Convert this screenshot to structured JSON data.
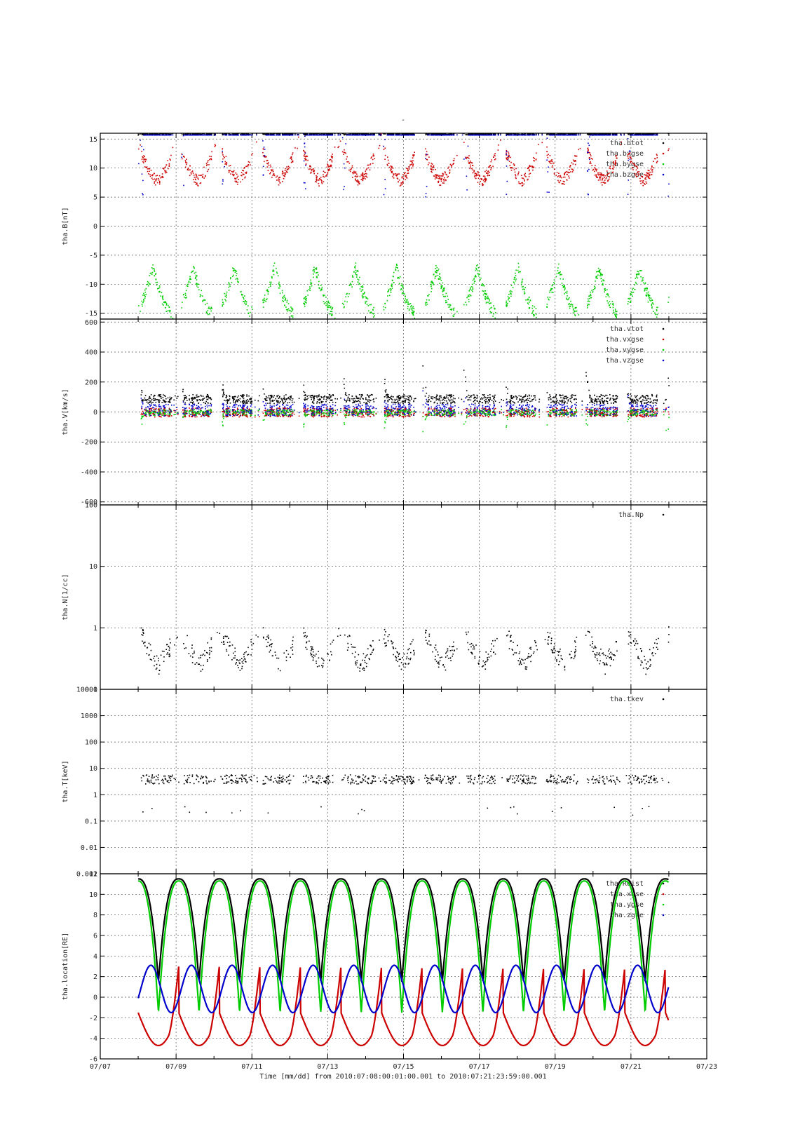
{
  "title": "-",
  "xlabel": "Time [mm/dd]  from 2010:07:08:00:01:00.001  to  2010:07:21:23:59:00.001",
  "x_ticks": [
    "07/07",
    "07/09",
    "07/11",
    "07/13",
    "07/15",
    "07/17",
    "07/19",
    "07/21",
    "07/23"
  ],
  "colors": {
    "black": "#000000",
    "red": "#cc0000",
    "green": "#00cc00",
    "blue": "#0000cc",
    "grid": "#555555"
  },
  "chart_data": [
    {
      "type": "scatter",
      "panel": "B",
      "ylabel": "tha.B[nT]",
      "ylim": [
        -16,
        16
      ],
      "xlim": [
        "07/07",
        "07/23"
      ],
      "y_ticks": [
        "15",
        "10",
        "5",
        "0",
        "-5",
        "-10",
        "-15"
      ],
      "grid": true,
      "legend_position": "top-right",
      "series": [
        {
          "name": "tha.btot",
          "color": "#000000"
        },
        {
          "name": "tha.bxgse",
          "color": "#cc0000"
        },
        {
          "name": "tha.bygse",
          "color": "#00cc00"
        },
        {
          "name": "tha.bzgse",
          "color": "#0000cc"
        }
      ]
    },
    {
      "type": "scatter",
      "panel": "V",
      "ylabel": "tha.V[km/s]",
      "ylim": [
        -620,
        620
      ],
      "xlim": [
        "07/07",
        "07/23"
      ],
      "y_ticks": [
        "600",
        "400",
        "200",
        "0",
        "-200",
        "-400",
        "-600"
      ],
      "grid": true,
      "legend_position": "top-right",
      "series": [
        {
          "name": "tha.vtot",
          "color": "#000000"
        },
        {
          "name": "tha.vxgse",
          "color": "#cc0000"
        },
        {
          "name": "tha.vygse",
          "color": "#00cc00"
        },
        {
          "name": "tha.vzgse",
          "color": "#0000cc"
        }
      ]
    },
    {
      "type": "scatter",
      "panel": "N",
      "ylabel": "tha.N[1/cc]",
      "yscale": "log",
      "ylim": [
        0.1,
        100
      ],
      "xlim": [
        "07/07",
        "07/23"
      ],
      "y_ticks": [
        "100",
        "10",
        "1",
        "0.1"
      ],
      "grid": true,
      "legend_position": "top-right",
      "series": [
        {
          "name": "tha.Np",
          "color": "#000000"
        }
      ]
    },
    {
      "type": "scatter",
      "panel": "T",
      "ylabel": "tha.T[keV]",
      "yscale": "log",
      "ylim": [
        0.001,
        10000
      ],
      "xlim": [
        "07/07",
        "07/23"
      ],
      "y_ticks": [
        "10000",
        "1000",
        "100",
        "10",
        "1",
        "0.1",
        "0.01",
        "0.001"
      ],
      "grid": true,
      "legend_position": "top-right",
      "series": [
        {
          "name": "tha.tkev",
          "color": "#000000"
        }
      ]
    },
    {
      "type": "line",
      "panel": "location",
      "ylabel": "tha.location[RE]",
      "ylim": [
        -6,
        12
      ],
      "xlim": [
        "07/07",
        "07/23"
      ],
      "y_ticks": [
        "12",
        "10",
        "8",
        "6",
        "4",
        "2",
        "0",
        "-2",
        "-4",
        "-6"
      ],
      "grid": true,
      "legend_position": "top-right",
      "series": [
        {
          "name": "tha.Rdist",
          "color": "#000000"
        },
        {
          "name": "tha.xgse",
          "color": "#cc0000"
        },
        {
          "name": "tha.ygse",
          "color": "#00cc00"
        },
        {
          "name": "tha.zgse",
          "color": "#0000cc"
        }
      ]
    }
  ]
}
